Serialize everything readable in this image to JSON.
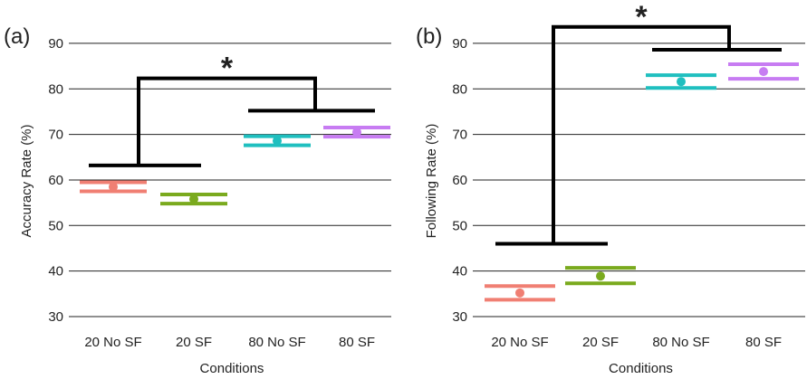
{
  "chart_data": [
    {
      "type": "scatter",
      "panel_label": "(a)",
      "xlabel": "Conditions",
      "ylabel": "Accuracy Rate (%)",
      "ylim": [
        30,
        90
      ],
      "yticks": [
        "30",
        "40",
        "50",
        "60",
        "70",
        "80",
        "90"
      ],
      "grid": true,
      "categories": [
        "20 No SF",
        "20 SF",
        "80 No SF",
        "80 SF"
      ],
      "series": [
        {
          "values": [
            58.5,
            55.8,
            68.6,
            70.5
          ],
          "ci_low": [
            57.5,
            54.8,
            67.6,
            69.5
          ],
          "ci_high": [
            59.5,
            56.8,
            69.6,
            71.5
          ],
          "colors": [
            "#f07f73",
            "#7aaa1e",
            "#1fbfbf",
            "#c77cf2"
          ]
        }
      ],
      "significance": {
        "label": "*",
        "bracket_top": 82.3,
        "left_group_y": 63.2,
        "right_group_y": 75.2
      }
    },
    {
      "type": "scatter",
      "panel_label": "(b)",
      "xlabel": "Conditions",
      "ylabel": "Following Rate (%)",
      "ylim": [
        30,
        90
      ],
      "yticks": [
        "30",
        "40",
        "50",
        "60",
        "70",
        "80",
        "90"
      ],
      "grid": true,
      "categories": [
        "20 No SF",
        "20 SF",
        "80 No SF",
        "80 SF"
      ],
      "series": [
        {
          "values": [
            35.2,
            38.9,
            81.6,
            83.8
          ],
          "ci_low": [
            33.7,
            37.3,
            80.2,
            82.2
          ],
          "ci_high": [
            36.7,
            40.7,
            83.0,
            85.4
          ],
          "colors": [
            "#f07f73",
            "#7aaa1e",
            "#1fbfbf",
            "#c77cf2"
          ]
        }
      ],
      "significance": {
        "label": "*",
        "bracket_top": 93.6,
        "left_group_y": 46.0,
        "right_group_y": 88.6
      }
    }
  ]
}
